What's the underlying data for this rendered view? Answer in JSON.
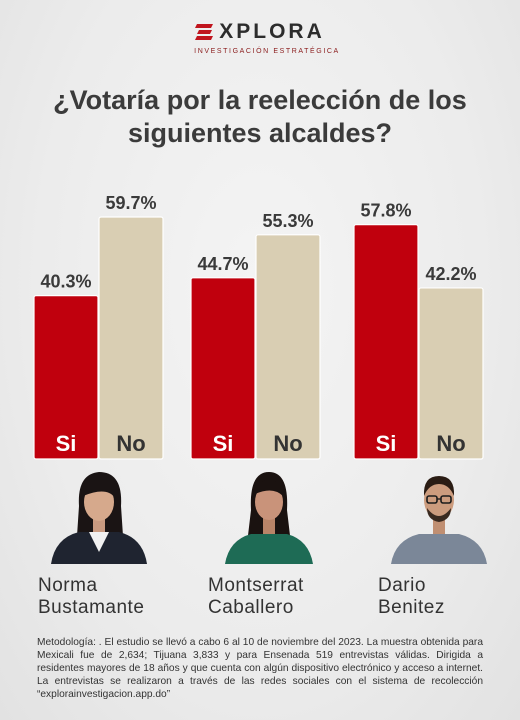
{
  "brand": {
    "name": "XPLORA",
    "tagline": "INVESTIGACIÓN ESTRATÉGICA",
    "accent_color": "#c0141d"
  },
  "headline": "¿Votaría por la reelección de los siguientes alcaldes?",
  "chart_data": {
    "type": "bar",
    "categories": [
      "Norma Bustamante",
      "Montserrat Caballero",
      "Dario Benitez"
    ],
    "series": [
      {
        "name": "Si",
        "values": [
          40.3,
          44.7,
          57.8
        ],
        "labels": [
          "40.3%",
          "44.7%",
          "57.8%"
        ],
        "color": "#c0000d"
      },
      {
        "name": "No",
        "values": [
          59.7,
          55.3,
          42.2
        ],
        "labels": [
          "59.7%",
          "55.3%",
          "42.2%"
        ],
        "color": "#d9ceb3"
      }
    ],
    "ylim": [
      0,
      59.7
    ],
    "grid": false,
    "legend": "none"
  },
  "people": [
    {
      "name": "Norma\nBustamante",
      "photo": "portrait-photo"
    },
    {
      "name": "Montserrat\nCaballero",
      "photo": "portrait-photo"
    },
    {
      "name": "Dario\nBenitez",
      "photo": "portrait-photo"
    }
  ],
  "methodology": "Metodología: . El estudio se llevó a cabo 6 al 10 de noviembre del 2023. La muestra obtenida para Mexicali fue de 2,634; Tijuana 3,833 y para Ensenada 519 entrevistas válidas. Dirigida a residentes mayores de 18 años y que cuenta con algún dispositivo electrónico y acceso a internet. La entrevistas se realizaron a través de las redes sociales con el sistema de recolección “explorainvestigacion.app.do”"
}
